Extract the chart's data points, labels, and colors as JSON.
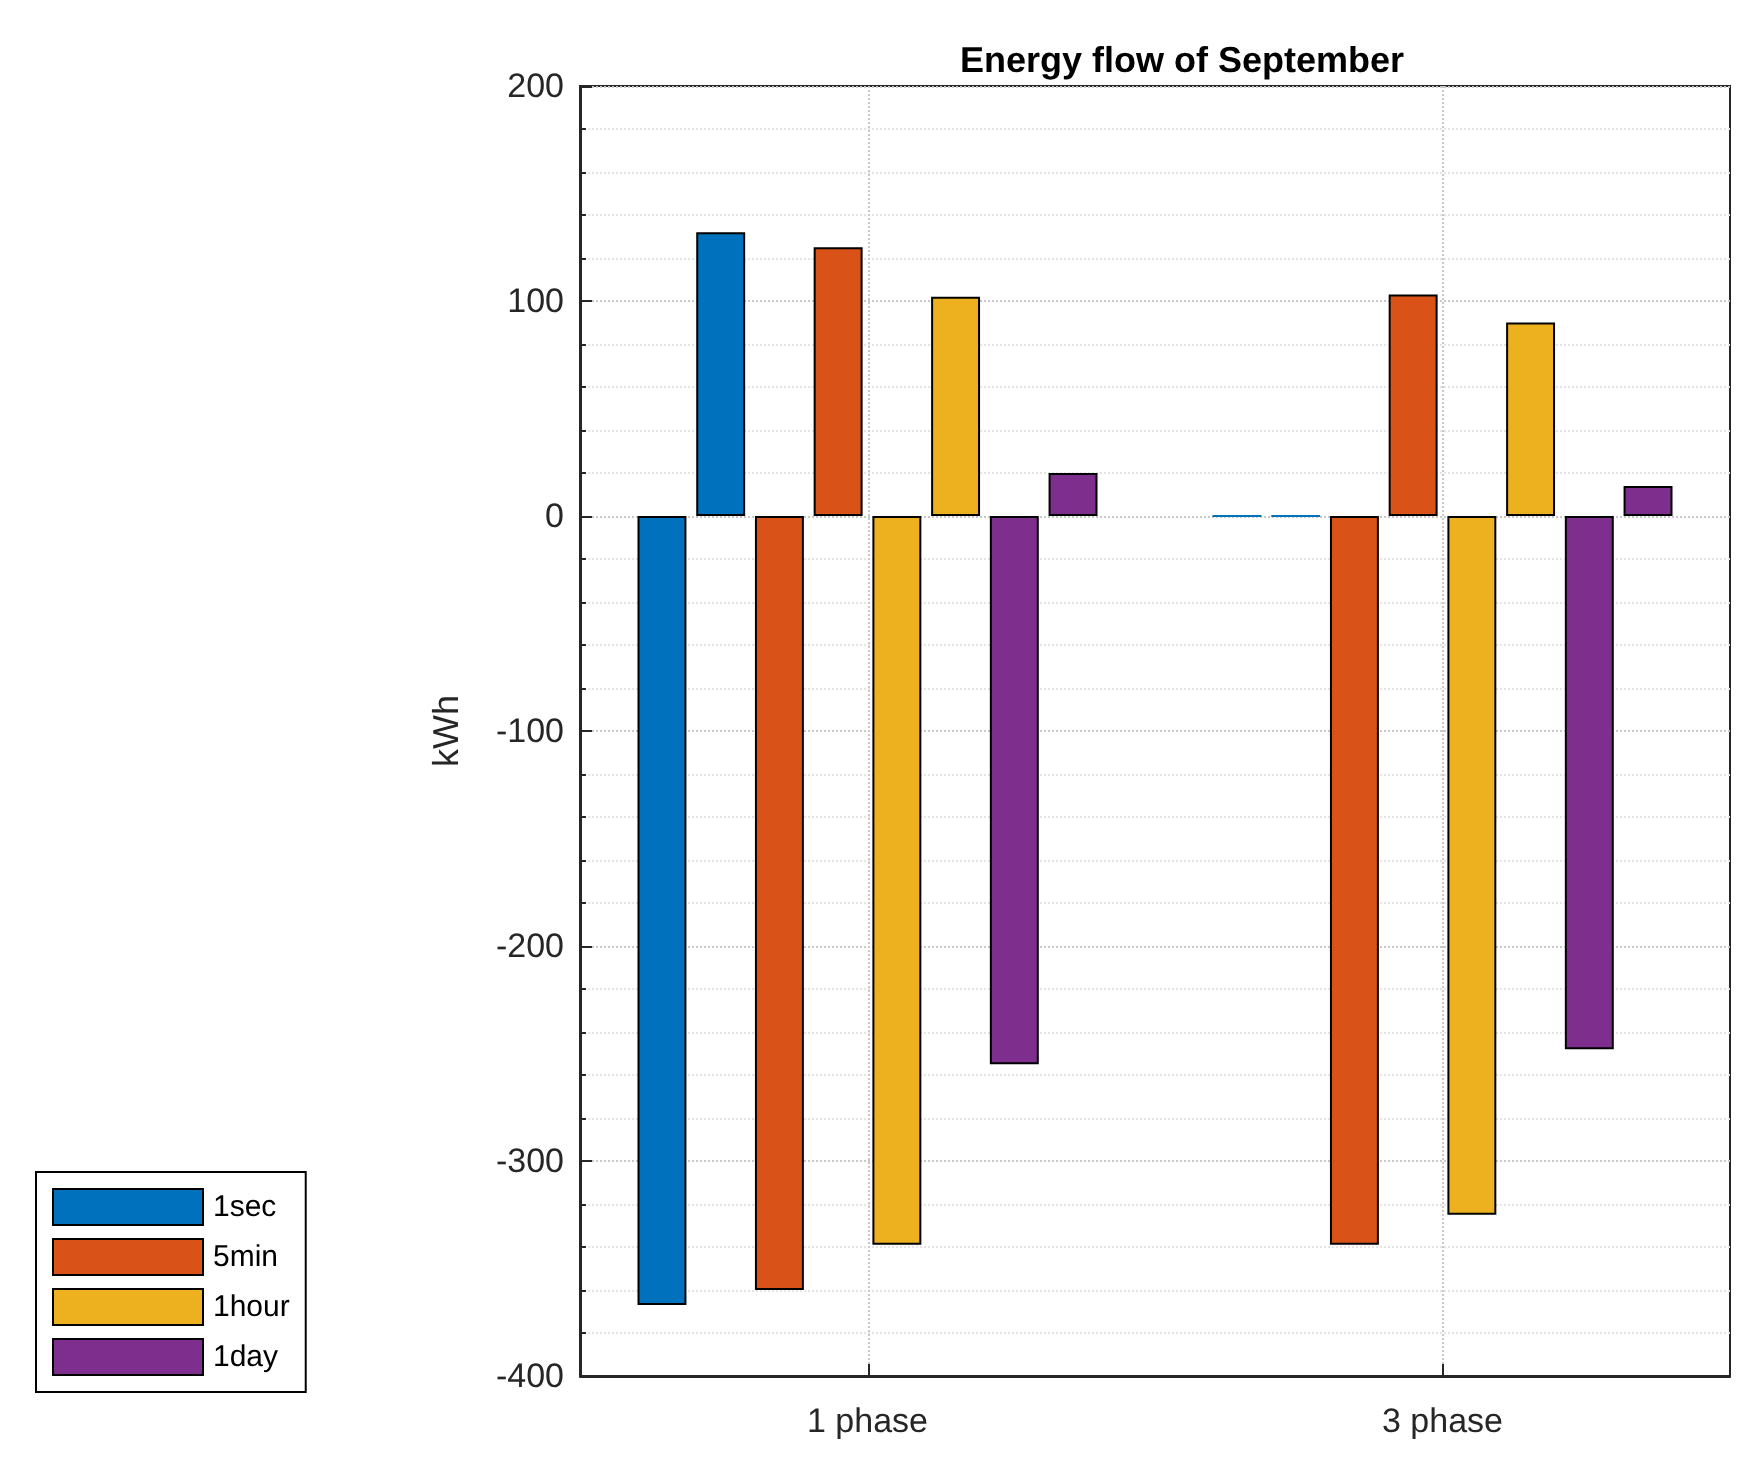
{
  "chart_data": {
    "type": "bar",
    "title": "Energy flow of September",
    "ylabel": "kWh",
    "categories": [
      "1 phase",
      "3 phase"
    ],
    "series": [
      {
        "name": "1sec",
        "color": "#0072bd",
        "values": [
          -367,
          0
        ]
      },
      {
        "color": "#0072bd",
        "values": [
          132,
          0
        ]
      },
      {
        "name": "5min",
        "color": "#d95319",
        "values": [
          -360,
          -339
        ]
      },
      {
        "color": "#d95319",
        "values": [
          125,
          103
        ]
      },
      {
        "name": "1hour",
        "color": "#edb120",
        "values": [
          -339,
          -325
        ]
      },
      {
        "color": "#edb120",
        "values": [
          102,
          90
        ]
      },
      {
        "name": "1day",
        "color": "#7e2f8e",
        "values": [
          -255,
          -248
        ]
      },
      {
        "color": "#7e2f8e",
        "values": [
          20,
          14
        ]
      }
    ],
    "ylim": [
      -400,
      200
    ],
    "yticks": [
      -400,
      -300,
      -200,
      -100,
      0,
      100,
      200
    ],
    "grid": true,
    "legend": "bottom left"
  }
}
